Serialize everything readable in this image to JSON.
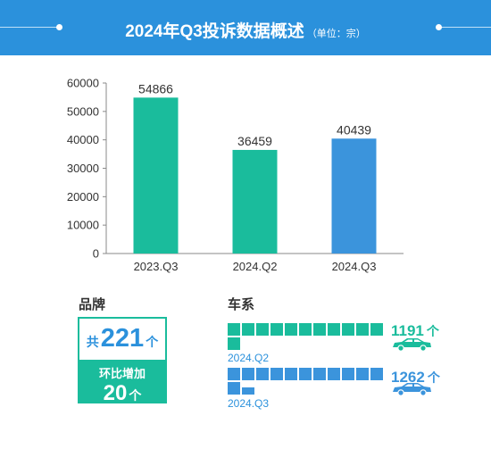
{
  "header": {
    "title": "2024年Q3投诉数据概述",
    "unit": "（单位：宗）"
  },
  "chart_data": {
    "type": "bar",
    "categories": [
      "2023.Q3",
      "2024.Q2",
      "2024.Q3"
    ],
    "values": [
      54866,
      36459,
      40439
    ],
    "data_labels": [
      "54866",
      "36459",
      "40439"
    ],
    "bar_colors": [
      "#1abc9c",
      "#1abc9c",
      "#3b94dc"
    ],
    "ylim": [
      0,
      60000
    ],
    "yticks": [
      "0",
      "10000",
      "20000",
      "30000",
      "40000",
      "50000",
      "60000"
    ],
    "grid": false,
    "title": "",
    "xlabel": "",
    "ylabel": ""
  },
  "brand": {
    "title": "品牌",
    "total_prefix": "共",
    "total": "221",
    "total_unit": "个",
    "delta_label": "环比增加",
    "delta": "20",
    "delta_unit": "个"
  },
  "series": {
    "title": "车系",
    "rows": [
      {
        "period": "2024.Q2",
        "count": "1191",
        "unit": "个",
        "color": "#1abc9c",
        "label_color": "#2b91dc",
        "count_color": "#1abc9c",
        "full_blocks": 12,
        "partial_block_fraction": 0
      },
      {
        "period": "2024.Q3",
        "count": "1262",
        "unit": "个",
        "color": "#3b94dc",
        "label_color": "#2b91dc",
        "count_color": "#3b94dc",
        "full_blocks": 12,
        "partial_block_fraction": 0.6
      }
    ]
  },
  "icons": [
    "car-icon"
  ]
}
